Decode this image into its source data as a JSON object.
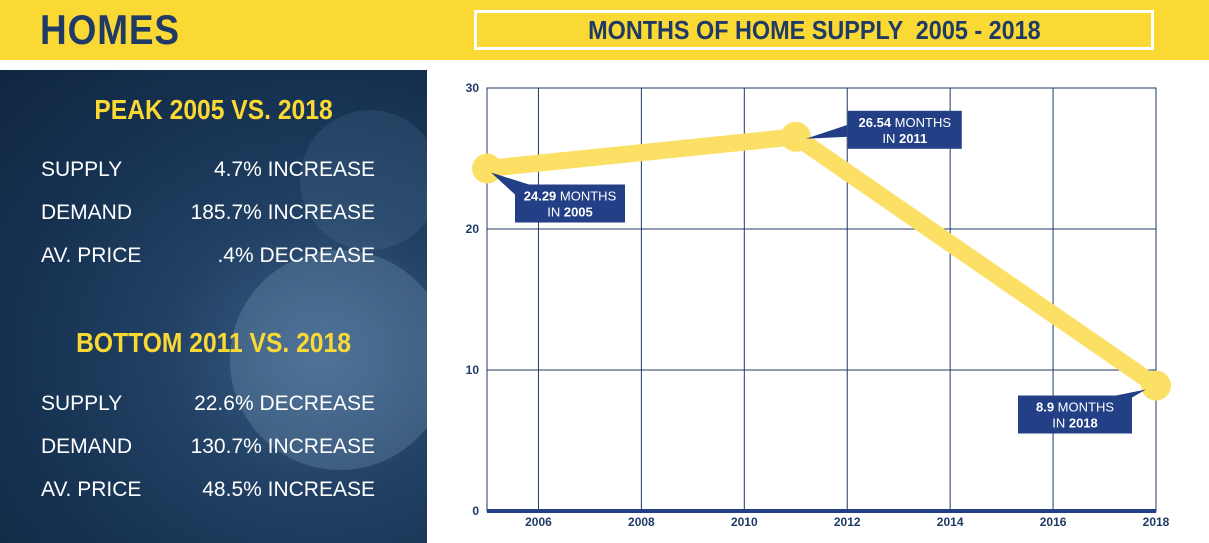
{
  "header": {
    "title": "HOMES"
  },
  "left_panel": {
    "peak": {
      "heading": "PEAK 2005 VS. 2018",
      "rows": [
        {
          "label": "SUPPLY",
          "value": "4.7% INCREASE"
        },
        {
          "label": "DEMAND",
          "value": "185.7% INCREASE"
        },
        {
          "label": "AV. PRICE",
          "value": ".4% DECREASE"
        }
      ]
    },
    "bottom": {
      "heading": "BOTTOM 2011 VS. 2018",
      "rows": [
        {
          "label": "SUPPLY",
          "value": "22.6% DECREASE"
        },
        {
          "label": "DEMAND",
          "value": "130.7% INCREASE"
        },
        {
          "label": "AV. PRICE",
          "value": "48.5% INCREASE"
        }
      ]
    }
  },
  "colors": {
    "accent": "#fbd935",
    "navy": "#1f3a64",
    "line": "#fce066",
    "callout": "#233f85"
  },
  "chart_data": {
    "type": "line",
    "title": "MONTHS OF HOME SUPPLY  2005 - 2018",
    "xlabel": "",
    "ylabel": "",
    "xlim": [
      2005,
      2018
    ],
    "ylim": [
      0,
      30
    ],
    "x_ticks": [
      "2006",
      "2008",
      "2010",
      "2012",
      "2014",
      "2016",
      "2018"
    ],
    "y_ticks": [
      "0",
      "10",
      "20",
      "30"
    ],
    "grid": true,
    "series": [
      {
        "x": [
          2005,
          2011,
          2018
        ],
        "values": [
          24.29,
          26.54,
          8.9
        ]
      }
    ],
    "annotations": [
      {
        "line1_bold": "24.29",
        "line1_rest": " MONTHS",
        "line2_rest": "IN ",
        "line2_bold": "2005"
      },
      {
        "line1_bold": "26.54",
        "line1_rest": " MONTHS",
        "line2_rest": "IN ",
        "line2_bold": "2011"
      },
      {
        "line1_bold": "8.9",
        "line1_rest": " MONTHS",
        "line2_rest": "IN ",
        "line2_bold": "2018"
      }
    ]
  }
}
